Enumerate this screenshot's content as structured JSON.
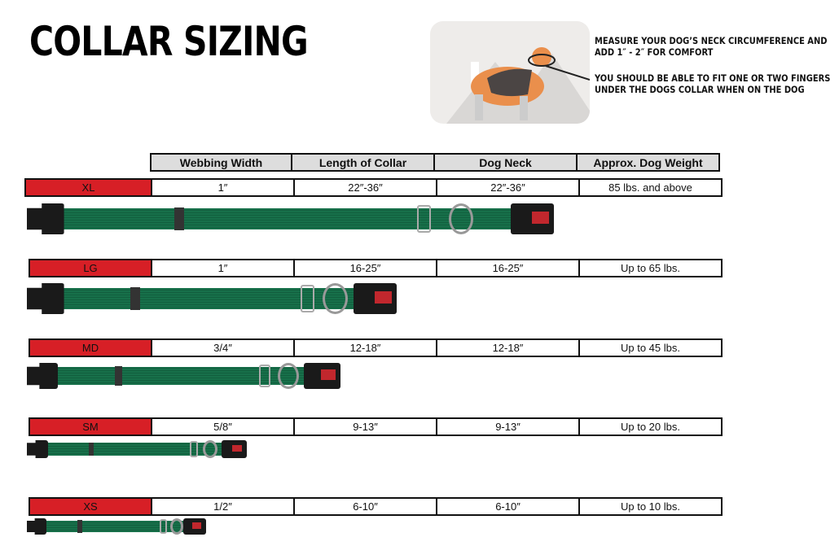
{
  "title": "COLLAR SIZING",
  "notes": [
    "MEASURE YOUR DOG’S NECK CIRCUMFERENCE AND",
    "ADD 1″ - 2″ FOR COMFORT",
    "YOU SHOULD BE ABLE TO FIT ONE OR TWO FINGERS",
    "UNDER THE DOGS COLLAR WHEN ON THE DOG"
  ],
  "brand_color": "#d71f26",
  "collar_color": "#17704a",
  "headers": [
    "Webbing Width",
    "Length of Collar",
    "Dog Neck",
    "Approx. Dog Weight"
  ],
  "sizes": [
    {
      "size": "XL",
      "width": "1″",
      "length": "22″-36″",
      "neck": "22″-36″",
      "weight": "85 lbs. and above"
    },
    {
      "size": "LG",
      "width": "1″",
      "length": "16-25″",
      "neck": "16-25″",
      "weight": "Up to 65 lbs."
    },
    {
      "size": "MD",
      "width": "3/4″",
      "length": "12-18″",
      "neck": "12-18″",
      "weight": "Up to 45 lbs."
    },
    {
      "size": "SM",
      "width": "5/8″",
      "length": "9-13″",
      "neck": "9-13″",
      "weight": "Up to 20 lbs."
    },
    {
      "size": "XS",
      "width": "1/2″",
      "length": "6-10″",
      "neck": "6-10″",
      "weight": "Up to 10 lbs."
    }
  ]
}
